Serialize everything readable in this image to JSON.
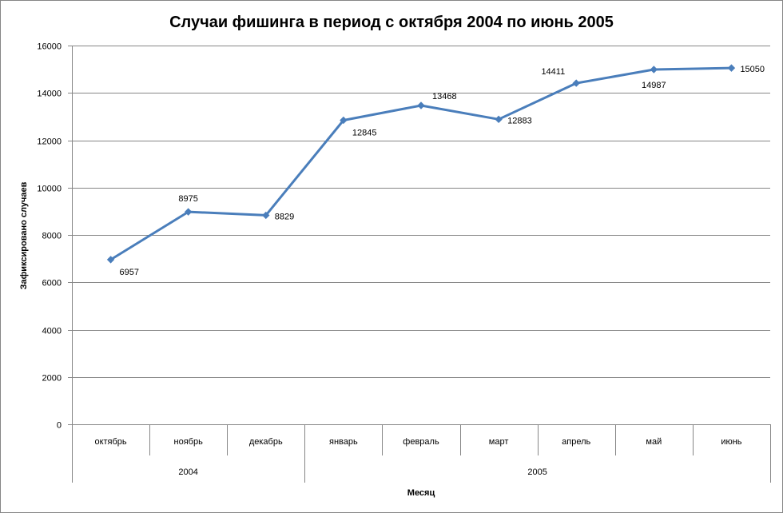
{
  "chart_data": {
    "type": "line",
    "title": "Случаи фишинга в период с октября 2004 по июнь 2005",
    "xlabel": "Месяц",
    "ylabel": "Зафиксировано  случаев",
    "categories": [
      "октябрь",
      "ноябрь",
      "декабрь",
      "январь",
      "февраль",
      "март",
      "апрель",
      "май",
      "июнь"
    ],
    "groups": [
      {
        "label": "2004",
        "count": 3
      },
      {
        "label": "2005",
        "count": 6
      }
    ],
    "series": [
      {
        "values": [
          6957,
          8975,
          8829,
          12845,
          13468,
          12883,
          14411,
          14987,
          15050
        ]
      }
    ],
    "data_labels": [
      "6957",
      "8975",
      "8829",
      "12845",
      "13468",
      "12883",
      "14411",
      "14987",
      "15050"
    ],
    "ylim": [
      0,
      16000
    ],
    "yticks": [
      "0",
      "2000",
      "4000",
      "6000",
      "8000",
      "10000",
      "12000",
      "14000",
      "16000"
    ],
    "grid": true,
    "legend": "none",
    "series_color": "#4a7ebb"
  }
}
